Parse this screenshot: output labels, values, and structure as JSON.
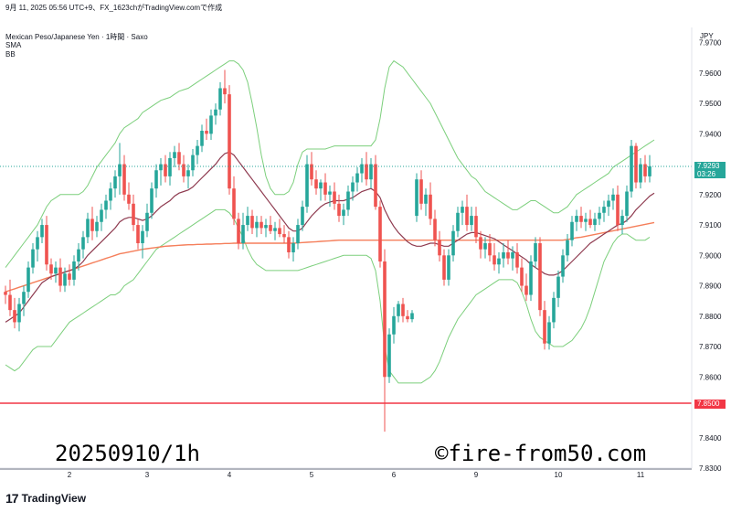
{
  "header": {
    "timestamp_line": "9月 11, 2025 05:56 UTC+9、FX_1623chがTradingView.comで作成",
    "symbol_line": "Mexican Peso/Japanese Yen · 1時間 · Saxo",
    "indicator1": "SMA",
    "indicator2": "BB"
  },
  "axis": {
    "currency": "JPY"
  },
  "current_price": {
    "value": "7.9293",
    "countdown": "03:26",
    "color": "#26a69a"
  },
  "hline_price": {
    "value": "7.8500",
    "color": "#f23645"
  },
  "watermarks": {
    "date_label": "20250910/1h",
    "site": "©fire-from50.com"
  },
  "footer": {
    "brand_mark": "17",
    "brand": "TradingView"
  },
  "colors": {
    "up": "#26a69a",
    "down": "#ef5350",
    "sma_short": "#8e3a4f",
    "sma_long": "#f57f5b",
    "bb": "#7ccf7c"
  },
  "chart_data": {
    "type": "candlestick",
    "ylim": [
      7.83,
      7.975
    ],
    "y_ticks": [
      "7.8300",
      "7.8400",
      "7.8600",
      "7.8700",
      "7.8800",
      "7.8900",
      "7.9000",
      "7.9100",
      "7.9200",
      "7.9400",
      "7.9500",
      "7.9600",
      "7.9700"
    ],
    "x_ticks": [
      {
        "label": "2",
        "index": 14
      },
      {
        "label": "3",
        "index": 31
      },
      {
        "label": "4",
        "index": 49
      },
      {
        "label": "5",
        "index": 67
      },
      {
        "label": "6",
        "index": 85
      },
      {
        "label": "9",
        "index": 103
      },
      {
        "label": "10",
        "index": 121
      },
      {
        "label": "11",
        "index": 139
      }
    ],
    "candles": [
      [
        7.888,
        7.89,
        7.884,
        7.887
      ],
      [
        7.887,
        7.892,
        7.88,
        7.882
      ],
      [
        7.882,
        7.886,
        7.876,
        7.878
      ],
      [
        7.878,
        7.886,
        7.875,
        7.884
      ],
      [
        7.884,
        7.89,
        7.88,
        7.888
      ],
      [
        7.888,
        7.898,
        7.886,
        7.896
      ],
      [
        7.896,
        7.904,
        7.894,
        7.902
      ],
      [
        7.902,
        7.908,
        7.898,
        7.906
      ],
      [
        7.906,
        7.912,
        7.904,
        7.91
      ],
      [
        7.91,
        7.913,
        7.895,
        7.897
      ],
      [
        7.897,
        7.899,
        7.892,
        7.894
      ],
      [
        7.894,
        7.898,
        7.891,
        7.896
      ],
      [
        7.896,
        7.899,
        7.888,
        7.89
      ],
      [
        7.89,
        7.896,
        7.888,
        7.894
      ],
      [
        7.894,
        7.897,
        7.89,
        7.892
      ],
      [
        7.892,
        7.9,
        7.89,
        7.898
      ],
      [
        7.898,
        7.904,
        7.895,
        7.902
      ],
      [
        7.902,
        7.908,
        7.899,
        7.906
      ],
      [
        7.906,
        7.914,
        7.904,
        7.912
      ],
      [
        7.912,
        7.916,
        7.905,
        7.908
      ],
      [
        7.908,
        7.913,
        7.906,
        7.911
      ],
      [
        7.911,
        7.917,
        7.908,
        7.915
      ],
      [
        7.915,
        7.92,
        7.912,
        7.918
      ],
      [
        7.918,
        7.924,
        7.915,
        7.922
      ],
      [
        7.922,
        7.928,
        7.919,
        7.926
      ],
      [
        7.926,
        7.937,
        7.92,
        7.93
      ],
      [
        7.93,
        7.933,
        7.918,
        7.92
      ],
      [
        7.92,
        7.924,
        7.915,
        7.917
      ],
      [
        7.917,
        7.92,
        7.908,
        7.91
      ],
      [
        7.91,
        7.912,
        7.902,
        7.904
      ],
      [
        7.904,
        7.91,
        7.899,
        7.908
      ],
      [
        7.908,
        7.917,
        7.906,
        7.914
      ],
      [
        7.914,
        7.924,
        7.912,
        7.922
      ],
      [
        7.922,
        7.93,
        7.919,
        7.928
      ],
      [
        7.928,
        7.932,
        7.923,
        7.93
      ],
      [
        7.93,
        7.933,
        7.924,
        7.926
      ],
      [
        7.926,
        7.934,
        7.923,
        7.932
      ],
      [
        7.932,
        7.936,
        7.929,
        7.934
      ],
      [
        7.934,
        7.937,
        7.928,
        7.93
      ],
      [
        7.93,
        7.933,
        7.924,
        7.926
      ],
      [
        7.926,
        7.93,
        7.922,
        7.928
      ],
      [
        7.928,
        7.935,
        7.926,
        7.933
      ],
      [
        7.933,
        7.938,
        7.93,
        7.936
      ],
      [
        7.936,
        7.943,
        7.934,
        7.941
      ],
      [
        7.941,
        7.945,
        7.938,
        7.94
      ],
      [
        7.94,
        7.948,
        7.938,
        7.946
      ],
      [
        7.946,
        7.95,
        7.943,
        7.948
      ],
      [
        7.948,
        7.957,
        7.946,
        7.955
      ],
      [
        7.955,
        7.961,
        7.95,
        7.953
      ],
      [
        7.953,
        7.956,
        7.92,
        7.922
      ],
      [
        7.922,
        7.926,
        7.91,
        7.912
      ],
      [
        7.912,
        7.914,
        7.902,
        7.904
      ],
      [
        7.904,
        7.914,
        7.902,
        7.91
      ],
      [
        7.91,
        7.916,
        7.908,
        7.913
      ],
      [
        7.913,
        7.915,
        7.907,
        7.909
      ],
      [
        7.909,
        7.913,
        7.906,
        7.911
      ],
      [
        7.911,
        7.913,
        7.907,
        7.909
      ],
      [
        7.909,
        7.912,
        7.906,
        7.91
      ],
      [
        7.91,
        7.913,
        7.907,
        7.908
      ],
      [
        7.908,
        7.911,
        7.905,
        7.909
      ],
      [
        7.909,
        7.912,
        7.906,
        7.907
      ],
      [
        7.907,
        7.91,
        7.904,
        7.906
      ],
      [
        7.906,
        7.908,
        7.899,
        7.901
      ],
      [
        7.901,
        7.906,
        7.898,
        7.904
      ],
      [
        7.904,
        7.912,
        7.902,
        7.91
      ],
      [
        7.91,
        7.918,
        7.908,
        7.916
      ],
      [
        7.916,
        7.933,
        7.914,
        7.93
      ],
      [
        7.93,
        7.934,
        7.923,
        7.925
      ],
      [
        7.925,
        7.928,
        7.92,
        7.922
      ],
      [
        7.922,
        7.925,
        7.918,
        7.924
      ],
      [
        7.924,
        7.927,
        7.918,
        7.92
      ],
      [
        7.92,
        7.923,
        7.916,
        7.921
      ],
      [
        7.921,
        7.924,
        7.915,
        7.917
      ],
      [
        7.917,
        7.92,
        7.911,
        7.913
      ],
      [
        7.913,
        7.917,
        7.91,
        7.915
      ],
      [
        7.915,
        7.923,
        7.913,
        7.921
      ],
      [
        7.921,
        7.926,
        7.918,
        7.924
      ],
      [
        7.924,
        7.929,
        7.921,
        7.927
      ],
      [
        7.927,
        7.932,
        7.924,
        7.93
      ],
      [
        7.93,
        7.934,
        7.923,
        7.925
      ],
      [
        7.925,
        7.932,
        7.922,
        7.93
      ],
      [
        7.93,
        7.933,
        7.915,
        7.916
      ],
      [
        7.916,
        7.918,
        7.896,
        7.898
      ],
      [
        7.898,
        7.902,
        7.842,
        7.86
      ],
      [
        7.86,
        7.876,
        7.858,
        7.874
      ],
      [
        7.874,
        7.883,
        7.871,
        7.88
      ],
      [
        7.88,
        7.885,
        7.878,
        7.884
      ],
      [
        7.884,
        7.886,
        7.878,
        7.88
      ],
      [
        7.88,
        7.882,
        7.878,
        7.879
      ],
      [
        7.879,
        7.882,
        7.878,
        7.881
      ],
      [
        7.913,
        7.927,
        7.911,
        7.925
      ],
      [
        7.925,
        7.928,
        7.915,
        7.917
      ],
      [
        7.917,
        7.922,
        7.913,
        7.92
      ],
      [
        7.92,
        7.924,
        7.91,
        7.912
      ],
      [
        7.912,
        7.915,
        7.903,
        7.905
      ],
      [
        7.905,
        7.908,
        7.898,
        7.9
      ],
      [
        7.9,
        7.902,
        7.89,
        7.892
      ],
      [
        7.892,
        7.902,
        7.89,
        7.9
      ],
      [
        7.9,
        7.91,
        7.898,
        7.908
      ],
      [
        7.908,
        7.916,
        7.906,
        7.914
      ],
      [
        7.914,
        7.918,
        7.91,
        7.916
      ],
      [
        7.916,
        7.92,
        7.908,
        7.91
      ],
      [
        7.91,
        7.916,
        7.908,
        7.913
      ],
      [
        7.913,
        7.916,
        7.904,
        7.906
      ],
      [
        7.906,
        7.908,
        7.899,
        7.902
      ],
      [
        7.902,
        7.906,
        7.899,
        7.904
      ],
      [
        7.904,
        7.907,
        7.898,
        7.9
      ],
      [
        7.9,
        7.904,
        7.895,
        7.897
      ],
      [
        7.897,
        7.901,
        7.894,
        7.899
      ],
      [
        7.899,
        7.904,
        7.896,
        7.901
      ],
      [
        7.901,
        7.905,
        7.897,
        7.899
      ],
      [
        7.899,
        7.903,
        7.895,
        7.901
      ],
      [
        7.901,
        7.904,
        7.894,
        7.896
      ],
      [
        7.896,
        7.899,
        7.888,
        7.89
      ],
      [
        7.89,
        7.894,
        7.885,
        7.887
      ],
      [
        7.887,
        7.9,
        7.885,
        7.898
      ],
      [
        7.898,
        7.906,
        7.896,
        7.904
      ],
      [
        7.904,
        7.906,
        7.88,
        7.882
      ],
      [
        7.882,
        7.885,
        7.869,
        7.871
      ],
      [
        7.871,
        7.88,
        7.869,
        7.878
      ],
      [
        7.878,
        7.888,
        7.876,
        7.886
      ],
      [
        7.886,
        7.895,
        7.883,
        7.893
      ],
      [
        7.893,
        7.902,
        7.891,
        7.9
      ],
      [
        7.9,
        7.907,
        7.898,
        7.905
      ],
      [
        7.905,
        7.913,
        7.903,
        7.911
      ],
      [
        7.911,
        7.915,
        7.908,
        7.913
      ],
      [
        7.913,
        7.916,
        7.909,
        7.911
      ],
      [
        7.911,
        7.914,
        7.908,
        7.912
      ],
      [
        7.912,
        7.915,
        7.909,
        7.91
      ],
      [
        7.91,
        7.914,
        7.908,
        7.912
      ],
      [
        7.912,
        7.916,
        7.91,
        7.914
      ],
      [
        7.914,
        7.918,
        7.911,
        7.916
      ],
      [
        7.916,
        7.92,
        7.913,
        7.918
      ],
      [
        7.918,
        7.922,
        7.915,
        7.92
      ],
      [
        7.92,
        7.923,
        7.908,
        7.91
      ],
      [
        7.91,
        7.915,
        7.907,
        7.913
      ],
      [
        7.913,
        7.923,
        7.911,
        7.921
      ],
      [
        7.921,
        7.938,
        7.919,
        7.936
      ],
      [
        7.936,
        7.937,
        7.922,
        7.924
      ],
      [
        7.924,
        7.932,
        7.922,
        7.93
      ],
      [
        7.93,
        7.933,
        7.924,
        7.926
      ],
      [
        7.926,
        7.933,
        7.924,
        7.9293
      ]
    ],
    "sma_short": [
      7.878,
      7.879,
      7.88,
      7.881,
      7.883,
      7.885,
      7.887,
      7.889,
      7.891,
      7.892,
      7.893,
      7.8935,
      7.894,
      7.8945,
      7.895,
      7.8955,
      7.8965,
      7.898,
      7.9,
      7.9015,
      7.903,
      7.9045,
      7.906,
      7.9075,
      7.909,
      7.911,
      7.912,
      7.9125,
      7.9125,
      7.912,
      7.9115,
      7.912,
      7.913,
      7.9145,
      7.916,
      7.917,
      7.918,
      7.9195,
      7.9205,
      7.921,
      7.9215,
      7.9225,
      7.924,
      7.9255,
      7.927,
      7.9285,
      7.93,
      7.932,
      7.9335,
      7.934,
      7.933,
      7.931,
      7.929,
      7.927,
      7.925,
      7.923,
      7.921,
      7.919,
      7.917,
      7.915,
      7.913,
      7.911,
      7.909,
      7.908,
      7.908,
      7.909,
      7.911,
      7.913,
      7.9145,
      7.916,
      7.917,
      7.9175,
      7.918,
      7.918,
      7.918,
      7.9185,
      7.919,
      7.92,
      7.921,
      7.9215,
      7.922,
      7.921,
      7.919,
      7.915,
      7.912,
      7.9095,
      7.9075,
      7.906,
      7.9045,
      7.9035,
      7.903,
      7.903,
      7.9035,
      7.904,
      7.904,
      7.9035,
      7.903,
      7.903,
      7.904,
      7.905,
      7.906,
      7.907,
      7.9075,
      7.9075,
      7.907,
      7.9065,
      7.906,
      7.9055,
      7.9045,
      7.9035,
      7.9025,
      7.9015,
      7.9005,
      7.8995,
      7.8985,
      7.897,
      7.896,
      7.895,
      7.894,
      7.8935,
      7.8935,
      7.894,
      7.895,
      7.8965,
      7.898,
      7.8995,
      7.901,
      7.9025,
      7.904,
      7.905,
      7.906,
      7.907,
      7.908,
      7.909,
      7.91,
      7.9105,
      7.9115,
      7.913,
      7.915,
      7.9165,
      7.918,
      7.9195,
      7.9205
    ],
    "sma_long": [
      7.888,
      7.8885,
      7.889,
      7.8895,
      7.89,
      7.8905,
      7.891,
      7.8915,
      7.892,
      7.8925,
      7.893,
      7.8935,
      7.894,
      7.8945,
      7.895,
      7.8955,
      7.896,
      7.8965,
      7.897,
      7.8975,
      7.898,
      7.8985,
      7.899,
      7.8995,
      7.9,
      7.9005,
      7.9008,
      7.9011,
      7.9014,
      7.9017,
      7.902,
      7.9022,
      7.9024,
      7.9026,
      7.9028,
      7.903,
      7.9031,
      7.9032,
      7.9033,
      7.9034,
      7.9035,
      7.9035,
      7.9036,
      7.9036,
      7.9037,
      7.9037,
      7.9038,
      7.9038,
      7.9039,
      7.9039,
      7.904,
      7.904,
      7.904,
      7.904,
      7.904,
      7.904,
      7.904,
      7.904,
      7.904,
      7.904,
      7.904,
      7.904,
      7.904,
      7.904,
      7.9041,
      7.9042,
      7.9043,
      7.9044,
      7.9045,
      7.9046,
      7.9047,
      7.9048,
      7.9049,
      7.905,
      7.905,
      7.905,
      7.905,
      7.905,
      7.905,
      7.905,
      7.905,
      7.905,
      7.905,
      7.905,
      7.905,
      7.905,
      7.905,
      7.905,
      7.905,
      7.905,
      7.905,
      7.905,
      7.905,
      7.905,
      7.905,
      7.905,
      7.905,
      7.905,
      7.905,
      7.905,
      7.905,
      7.905,
      7.905,
      7.905,
      7.905,
      7.905,
      7.905,
      7.905,
      7.905,
      7.905,
      7.905,
      7.905,
      7.905,
      7.905,
      7.905,
      7.905,
      7.905,
      7.905,
      7.905,
      7.905,
      7.905,
      7.905,
      7.905,
      7.9052,
      7.9055,
      7.9058,
      7.906,
      7.9063,
      7.9066,
      7.9069,
      7.9072,
      7.9075,
      7.9078,
      7.9081,
      7.9084,
      7.9087,
      7.909,
      7.9093,
      7.9096,
      7.9099,
      7.9102,
      7.9105,
      7.9108
    ],
    "bb_upper": [
      7.896,
      7.898,
      7.9,
      7.902,
      7.904,
      7.906,
      7.908,
      7.91,
      7.913,
      7.916,
      7.918,
      7.919,
      7.92,
      7.92,
      7.92,
      7.92,
      7.92,
      7.921,
      7.923,
      7.926,
      7.929,
      7.931,
      7.933,
      7.935,
      7.937,
      7.94,
      7.942,
      7.943,
      7.944,
      7.945,
      7.947,
      7.948,
      7.949,
      7.95,
      7.951,
      7.9515,
      7.952,
      7.953,
      7.954,
      7.9545,
      7.955,
      7.956,
      7.957,
      7.958,
      7.959,
      7.96,
      7.961,
      7.962,
      7.963,
      7.964,
      7.964,
      7.963,
      7.961,
      7.957,
      7.95,
      7.942,
      7.933,
      7.926,
      7.922,
      7.92,
      7.92,
      7.92,
      7.921,
      7.924,
      7.93,
      7.934,
      7.935,
      7.935,
      7.935,
      7.935,
      7.935,
      7.9355,
      7.936,
      7.936,
      7.936,
      7.936,
      7.936,
      7.936,
      7.936,
      7.936,
      7.936,
      7.938,
      7.945,
      7.955,
      7.962,
      7.964,
      7.963,
      7.962,
      7.96,
      7.958,
      7.956,
      7.954,
      7.952,
      7.95,
      7.947,
      7.944,
      7.941,
      7.938,
      7.935,
      7.932,
      7.93,
      7.928,
      7.926,
      7.925,
      7.923,
      7.921,
      7.92,
      7.919,
      7.918,
      7.917,
      7.916,
      7.915,
      7.915,
      7.916,
      7.917,
      7.918,
      7.918,
      7.917,
      7.916,
      7.915,
      7.914,
      7.914,
      7.915,
      7.916,
      7.918,
      7.92,
      7.921,
      7.922,
      7.923,
      7.924,
      7.925,
      7.926,
      7.927,
      7.929,
      7.93,
      7.931,
      7.932,
      7.933,
      7.934,
      7.935,
      7.936,
      7.937,
      7.938
    ],
    "bb_lower": [
      7.864,
      7.863,
      7.862,
      7.863,
      7.865,
      7.867,
      7.869,
      7.87,
      7.87,
      7.87,
      7.87,
      7.872,
      7.874,
      7.876,
      7.878,
      7.879,
      7.88,
      7.881,
      7.882,
      7.883,
      7.884,
      7.885,
      7.886,
      7.887,
      7.887,
      7.888,
      7.89,
      7.891,
      7.892,
      7.894,
      7.896,
      7.898,
      7.9,
      7.902,
      7.903,
      7.904,
      7.905,
      7.906,
      7.907,
      7.908,
      7.909,
      7.91,
      7.911,
      7.912,
      7.913,
      7.914,
      7.915,
      7.915,
      7.915,
      7.914,
      7.912,
      7.909,
      7.906,
      7.902,
      7.899,
      7.897,
      7.896,
      7.895,
      7.895,
      7.895,
      7.895,
      7.895,
      7.895,
      7.895,
      7.895,
      7.8955,
      7.896,
      7.8965,
      7.897,
      7.8975,
      7.898,
      7.8985,
      7.899,
      7.8995,
      7.9,
      7.9,
      7.9,
      7.9,
      7.9,
      7.9,
      7.899,
      7.895,
      7.885,
      7.87,
      7.862,
      7.86,
      7.858,
      7.858,
      7.858,
      7.858,
      7.858,
      7.858,
      7.859,
      7.86,
      7.862,
      7.865,
      7.869,
      7.873,
      7.876,
      7.879,
      7.881,
      7.883,
      7.885,
      7.887,
      7.888,
      7.889,
      7.89,
      7.891,
      7.892,
      7.892,
      7.892,
      7.892,
      7.891,
      7.888,
      7.884,
      7.879,
      7.875,
      7.873,
      7.872,
      7.871,
      7.87,
      7.87,
      7.87,
      7.871,
      7.872,
      7.874,
      7.876,
      7.879,
      7.883,
      7.888,
      7.893,
      7.898,
      7.901,
      7.904,
      7.906,
      7.907,
      7.907,
      7.906,
      7.905,
      7.905,
      7.905,
      7.906
    ]
  }
}
